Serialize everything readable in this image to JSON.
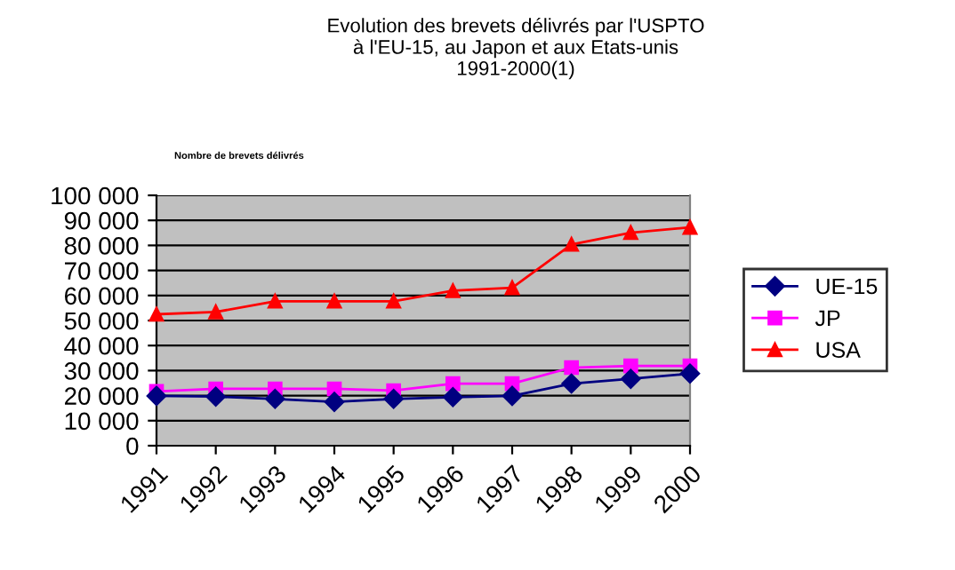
{
  "chart_data": {
    "type": "line",
    "title": "Evolution des brevets délivrés par l'USPTO\nà l'EU-15, au Japon et aux Etats-unis\n1991-2000(1)",
    "ylabel": "Nombre de brevets délivrés",
    "x": [
      1991,
      1992,
      1993,
      1994,
      1995,
      1996,
      1997,
      1998,
      1999,
      2000
    ],
    "series": [
      {
        "name": "UE-15",
        "color": "#000080",
        "marker": "diamond",
        "values": [
          19900,
          19600,
          18700,
          17500,
          18700,
          19400,
          19900,
          24800,
          26700,
          28800
        ]
      },
      {
        "name": "JP",
        "color": "#ff00ff",
        "marker": "square",
        "values": [
          21700,
          22700,
          22700,
          22700,
          22000,
          24800,
          24800,
          31200,
          31900,
          31900
        ]
      },
      {
        "name": "USA",
        "color": "#ff0000",
        "marker": "triangle",
        "values": [
          52500,
          53400,
          57700,
          57700,
          57700,
          61900,
          63100,
          80400,
          85100,
          87200
        ]
      }
    ],
    "xlim": [
      1991,
      2000
    ],
    "xticks": [
      1991,
      1992,
      1993,
      1994,
      1995,
      1996,
      1997,
      1998,
      1999,
      2000
    ],
    "ylim": [
      0,
      100000
    ],
    "yticks": [
      {
        "value": 0,
        "label": "0"
      },
      {
        "value": 10000,
        "label": "10 000"
      },
      {
        "value": 20000,
        "label": "20 000"
      },
      {
        "value": 30000,
        "label": "30 000"
      },
      {
        "value": 40000,
        "label": "40 000"
      },
      {
        "value": 50000,
        "label": "50 000"
      },
      {
        "value": 60000,
        "label": "60 000"
      },
      {
        "value": 70000,
        "label": "70 000"
      },
      {
        "value": 80000,
        "label": "80 000"
      },
      {
        "value": 90000,
        "label": "90 000"
      },
      {
        "value": 100000,
        "label": "100 000"
      }
    ],
    "grid": "y",
    "legend": "right"
  }
}
